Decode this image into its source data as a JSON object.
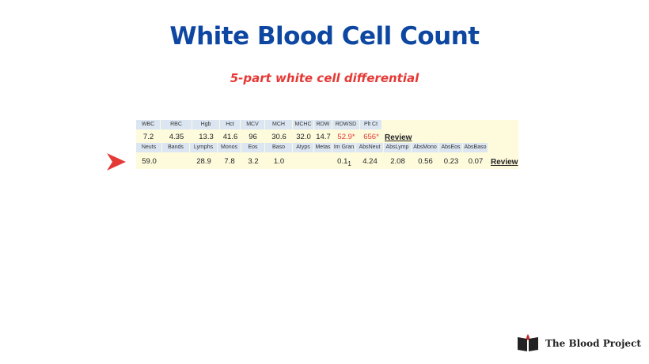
{
  "header": {
    "title": "White Blood Cell Count",
    "subtitle": "5-part white cell differential"
  },
  "cbc": {
    "headers": [
      "WBC",
      "RBC",
      "Hgb",
      "Hct",
      "MCV",
      "MCH",
      "MCHC",
      "RDW",
      "RDWSD",
      "Plt Ct"
    ],
    "values": [
      "7.2",
      "4.35",
      "13.3",
      "41.6",
      "96",
      "30.6",
      "32.0",
      "14.7",
      {
        "text": "52.9*",
        "color": "#e53935"
      },
      {
        "text": "656*",
        "color": "#e53935"
      }
    ],
    "link": "Review"
  },
  "differential": {
    "headers": [
      "Neuts",
      "Bands",
      "Lymphs",
      "Monos",
      "Eos",
      "Baso",
      "Atyps",
      "Metas",
      "Im Gran",
      "AbsNeut",
      "AbsLymp",
      "AbsMono",
      "AbsEos",
      "AbsBaso"
    ],
    "values": [
      "59.0",
      null,
      "28.9",
      "7.8",
      "3.2",
      "1.0",
      null,
      null,
      {
        "text": "0.1",
        "sub": "1"
      },
      "4.24",
      "2.08",
      "0.56",
      "0.23",
      "0.07"
    ],
    "link": "Review"
  },
  "logo": {
    "text": "The Blood Project"
  }
}
